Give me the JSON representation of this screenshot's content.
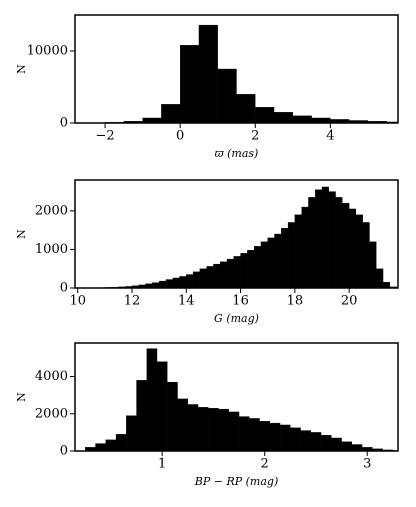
{
  "chart_data": [
    {
      "type": "histogram",
      "color": "#000000",
      "xlabel": "ϖ (mas)",
      "ylabel": "N",
      "bins": [
        -2.5,
        -2,
        -1.5,
        -1,
        -0.5,
        0,
        0.5,
        1,
        1.5,
        2,
        2.5,
        3,
        3.5,
        4,
        4.5,
        5,
        5.5,
        6
      ],
      "values": [
        50,
        100,
        250,
        700,
        2600,
        10800,
        13600,
        7500,
        4000,
        2200,
        1500,
        1000,
        700,
        500,
        350,
        250,
        150
      ],
      "xlim": [
        -2.8,
        5.8
      ],
      "ylim": [
        0,
        15000
      ],
      "xticks": [
        {
          "value": -2,
          "label": "−2"
        },
        0,
        2,
        4
      ],
      "yticks": [
        0,
        10000
      ]
    },
    {
      "type": "histogram",
      "color": "#000000",
      "xlabel": "G (mag)",
      "ylabel": "N",
      "bins": [
        10,
        10.25,
        10.5,
        10.75,
        11,
        11.25,
        11.5,
        11.75,
        12,
        12.25,
        12.5,
        12.75,
        13,
        13.25,
        13.5,
        13.75,
        14,
        14.25,
        14.5,
        14.75,
        15,
        15.25,
        15.5,
        15.75,
        16,
        16.25,
        16.5,
        16.75,
        17,
        17.25,
        17.5,
        17.75,
        18,
        18.25,
        18.5,
        18.75,
        19,
        19.25,
        19.5,
        19.75,
        20,
        20.25,
        20.5,
        20.75,
        21,
        21.25,
        21.5,
        21.75
      ],
      "values": [
        5,
        5,
        8,
        10,
        15,
        20,
        30,
        40,
        60,
        80,
        110,
        140,
        180,
        220,
        260,
        300,
        350,
        420,
        500,
        560,
        620,
        680,
        750,
        820,
        900,
        980,
        1080,
        1200,
        1300,
        1400,
        1550,
        1700,
        1900,
        2100,
        2350,
        2550,
        2620,
        2500,
        2350,
        2200,
        2050,
        1900,
        1700,
        1200,
        500,
        150,
        30
      ],
      "xlim": [
        9.9,
        21.8
      ],
      "ylim": [
        0,
        2800
      ],
      "xticks": [
        10,
        12,
        14,
        16,
        18,
        20
      ],
      "yticks": [
        0,
        1000,
        2000
      ]
    },
    {
      "type": "histogram",
      "color": "#000000",
      "xlabel": "BP − RP (mag)",
      "ylabel": "N",
      "bins": [
        0.25,
        0.35,
        0.45,
        0.55,
        0.65,
        0.75,
        0.85,
        0.95,
        1.05,
        1.15,
        1.25,
        1.35,
        1.45,
        1.55,
        1.65,
        1.75,
        1.85,
        1.95,
        2.05,
        2.15,
        2.25,
        2.35,
        2.45,
        2.55,
        2.65,
        2.75,
        2.85,
        2.95,
        3.05,
        3.15,
        3.25,
        3.35
      ],
      "values": [
        200,
        400,
        600,
        900,
        1900,
        3800,
        5500,
        4800,
        3700,
        2800,
        2500,
        2350,
        2300,
        2250,
        2100,
        1850,
        1750,
        1600,
        1500,
        1400,
        1250,
        1100,
        1000,
        850,
        700,
        500,
        350,
        200,
        120,
        60,
        30
      ],
      "xlim": [
        0.15,
        3.3
      ],
      "ylim": [
        0,
        5800
      ],
      "xticks": [
        1,
        2,
        3
      ],
      "yticks": [
        0,
        2000,
        4000
      ]
    }
  ]
}
